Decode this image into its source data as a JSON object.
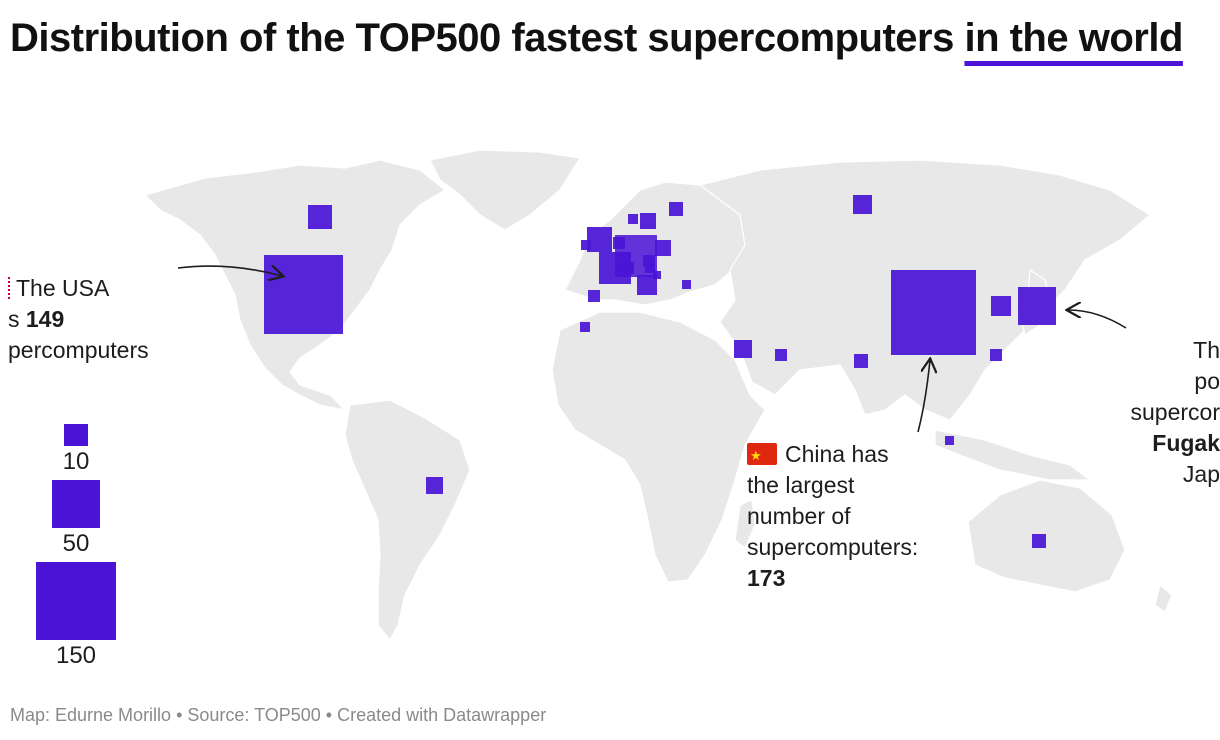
{
  "title": {
    "main": "Distribution of the TOP500 fastest supercomputers ",
    "highlight": "in the world"
  },
  "map": {
    "land_color": "#e8e8e8",
    "border_color": "#ffffff",
    "marker_color": "#4a13d6"
  },
  "annotations": {
    "usa": {
      "line1": "The USA",
      "line2_pre": "s ",
      "line2_bold": "149",
      "line3": "percomputers"
    },
    "china": {
      "flag_icon": "china-flag-icon",
      "line1": "China has",
      "line2": "the largest",
      "line3": "number of",
      "line4": "supercomputers:",
      "count": "173"
    },
    "japan": {
      "line1": "Th",
      "line2": "po",
      "line3": "supercor",
      "line4_bold": "Fugak",
      "line5": "Jap"
    }
  },
  "legend": {
    "items": [
      {
        "label": "10",
        "value": 10
      },
      {
        "label": "50",
        "value": 50
      },
      {
        "label": "150",
        "value": 150
      }
    ]
  },
  "footer": "Map: Edurne Morillo • Source: TOP500 • Created with Datawrapper"
}
